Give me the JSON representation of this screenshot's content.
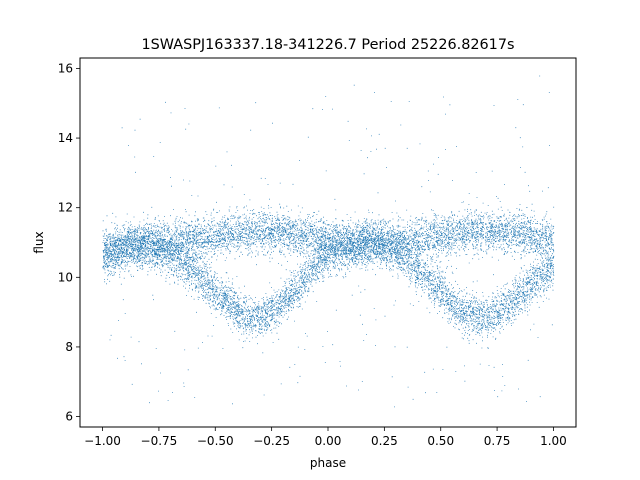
{
  "chart_data": {
    "type": "scatter",
    "title": "1SWASPJ163337.18-341226.7 Period 25226.82617s",
    "xlabel": "phase",
    "ylabel": "flux",
    "xlim": [
      -1.1,
      1.1
    ],
    "ylim": [
      5.7,
      16.3
    ],
    "x_ticks": [
      -1.0,
      -0.75,
      -0.5,
      -0.25,
      0.0,
      0.25,
      0.5,
      0.75,
      1.0
    ],
    "x_tick_labels": [
      "−1.00",
      "−0.75",
      "−0.50",
      "−0.25",
      "0.00",
      "0.25",
      "0.50",
      "0.75",
      "1.00"
    ],
    "y_ticks": [
      6,
      8,
      10,
      12,
      14,
      16
    ],
    "y_tick_labels": [
      "6",
      "8",
      "10",
      "12",
      "14",
      "16"
    ],
    "grid": false,
    "legend": "none",
    "marker_color": "#1f77b4",
    "series": [
      {
        "phase_range": [
          -1.0,
          1.0
        ],
        "branches": [
          {
            "phase": [
              -1.0,
              -0.9,
              -0.8,
              -0.7,
              -0.6,
              -0.5,
              -0.4,
              -0.3,
              -0.2,
              -0.1,
              0.0,
              0.1,
              0.2,
              0.3,
              0.4,
              0.5,
              0.6,
              0.7,
              0.8,
              0.9,
              1.0
            ],
            "flux": [
              10.8,
              10.9,
              11.0,
              11.0,
              11.1,
              11.2,
              11.3,
              11.3,
              11.3,
              11.2,
              11.1,
              10.9,
              11.0,
              11.0,
              11.1,
              11.2,
              11.3,
              11.3,
              11.3,
              11.2,
              11.1
            ]
          },
          {
            "phase": [
              -1.0,
              -0.9,
              -0.8,
              -0.7,
              -0.6,
              -0.5,
              -0.4,
              -0.3,
              -0.2,
              -0.1,
              0.0,
              0.1,
              0.2,
              0.3,
              0.4,
              0.5,
              0.6,
              0.7,
              0.8,
              0.9,
              1.0
            ],
            "flux": [
              10.6,
              10.8,
              10.9,
              10.7,
              10.2,
              9.6,
              9.0,
              8.8,
              9.3,
              10.0,
              10.7,
              10.9,
              11.0,
              10.8,
              10.2,
              9.6,
              9.0,
              8.8,
              9.2,
              9.8,
              10.3
            ]
          }
        ],
        "scatter_sigma": 0.3,
        "point_count": 13000
      }
    ]
  }
}
